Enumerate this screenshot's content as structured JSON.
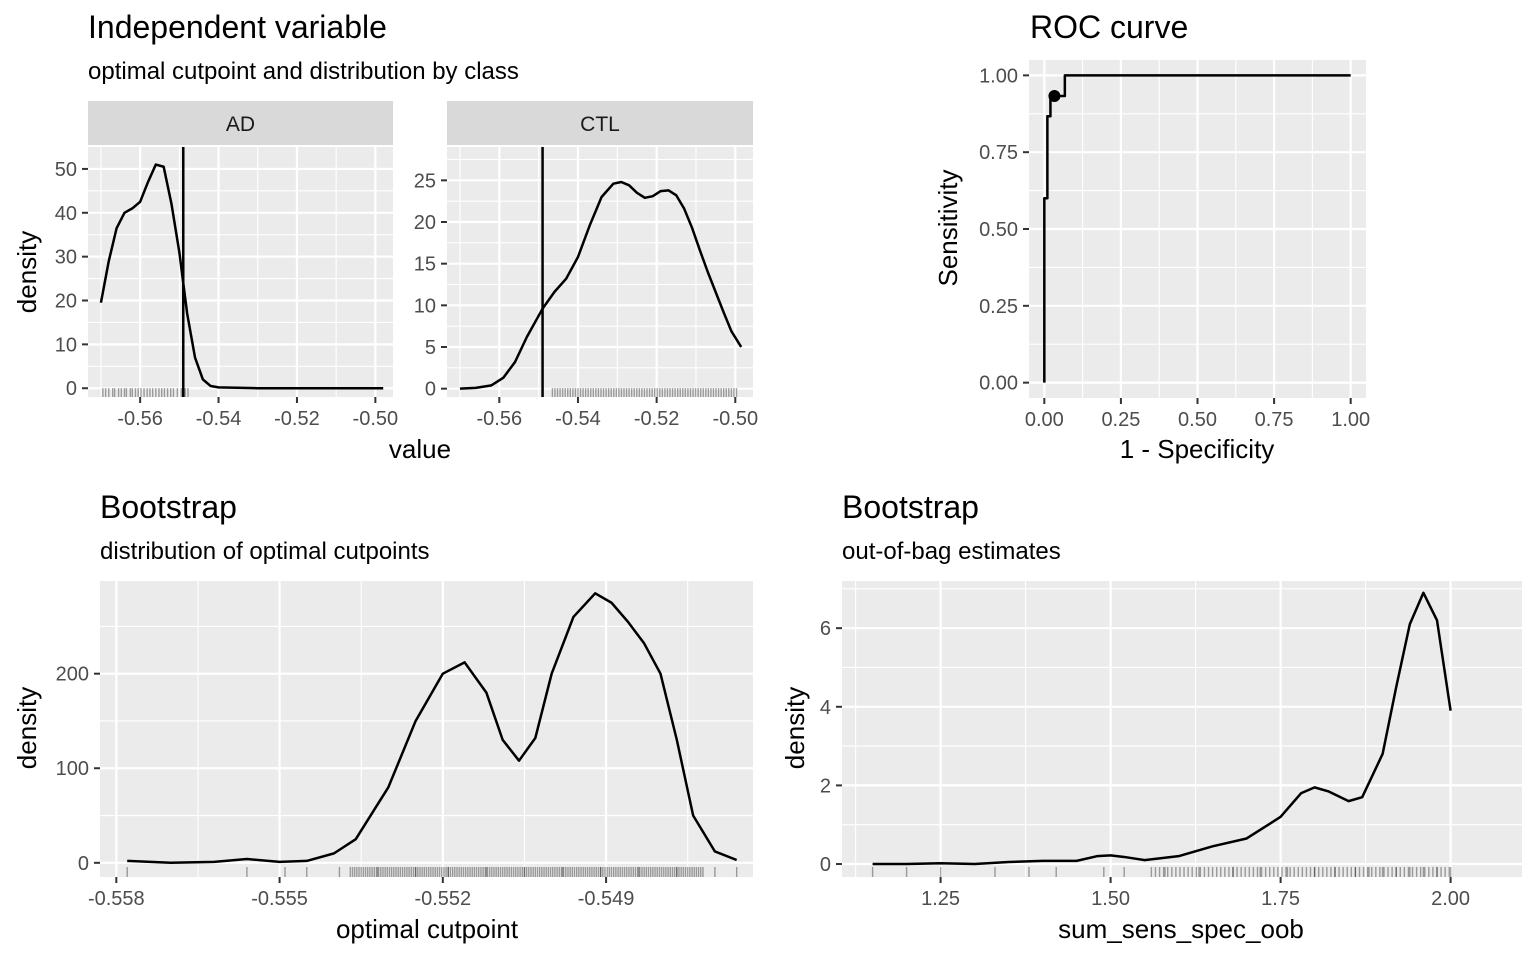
{
  "chart_data": [
    {
      "id": "independent_variable",
      "type": "line",
      "title": "Independent variable",
      "subtitle": "optimal cutpoint and distribution by class",
      "xlabel": "value",
      "ylabel": "density",
      "x_ticks": [
        "-0.56",
        "-0.54",
        "-0.52",
        "-0.50"
      ],
      "optimal_cutpoint": -0.549,
      "facets": [
        {
          "label": "AD",
          "ylim": [
            -2,
            55
          ],
          "y_ticks": [
            "0",
            "10",
            "20",
            "30",
            "40",
            "50"
          ],
          "x": [
            -0.57,
            -0.568,
            -0.566,
            -0.564,
            -0.562,
            -0.56,
            -0.558,
            -0.556,
            -0.554,
            -0.552,
            -0.55,
            -0.549,
            -0.548,
            -0.546,
            -0.544,
            -0.542,
            -0.54,
            -0.53,
            -0.52,
            -0.51,
            -0.498
          ],
          "y": [
            19.5,
            29,
            36.5,
            40,
            41,
            42.5,
            47,
            51,
            50.5,
            42,
            31,
            24,
            17,
            7,
            2,
            0.5,
            0.2,
            0,
            0,
            0,
            0
          ],
          "rug": [
            -0.5695,
            -0.5688,
            -0.568,
            -0.567,
            -0.5665,
            -0.5655,
            -0.5648,
            -0.564,
            -0.5635,
            -0.5625,
            -0.562,
            -0.5612,
            -0.5605,
            -0.5598,
            -0.559,
            -0.5582,
            -0.5575,
            -0.5568,
            -0.556,
            -0.5552,
            -0.5545,
            -0.5538,
            -0.553,
            -0.5522,
            -0.5515,
            -0.5505,
            -0.5495,
            -0.5485,
            -0.5478
          ]
        },
        {
          "label": "CTL",
          "ylim": [
            -1,
            29
          ],
          "y_ticks": [
            "0",
            "5",
            "10",
            "15",
            "20",
            "25"
          ],
          "x": [
            -0.57,
            -0.566,
            -0.562,
            -0.559,
            -0.556,
            -0.553,
            -0.549,
            -0.546,
            -0.543,
            -0.54,
            -0.537,
            -0.534,
            -0.531,
            -0.529,
            -0.527,
            -0.525,
            -0.523,
            -0.521,
            -0.519,
            -0.517,
            -0.515,
            -0.513,
            -0.511,
            -0.509,
            -0.507,
            -0.505,
            -0.503,
            -0.501,
            -0.4985
          ],
          "y": [
            0,
            0.1,
            0.4,
            1.3,
            3.2,
            6.2,
            9.6,
            11.6,
            13.2,
            15.8,
            19.6,
            23,
            24.6,
            24.8,
            24.4,
            23.5,
            22.9,
            23.1,
            23.7,
            23.8,
            23.2,
            21.6,
            19.3,
            16.6,
            14.0,
            11.6,
            9.2,
            6.9,
            5.0
          ]
        }
      ]
    },
    {
      "id": "roc_curve",
      "type": "line",
      "title": "ROC curve",
      "xlabel": "1 - Specificity",
      "ylabel": "Sensitivity",
      "x_ticks": [
        "0.00",
        "0.25",
        "0.50",
        "0.75",
        "1.00"
      ],
      "y_ticks": [
        "0.00",
        "0.25",
        "0.50",
        "0.75",
        "1.00"
      ],
      "xlim": [
        -0.05,
        1.05
      ],
      "ylim": [
        -0.05,
        1.05
      ],
      "fpr": [
        0,
        0,
        0.01,
        0.01,
        0.02,
        0.02,
        0.033,
        0.033,
        0.067,
        0.067,
        1.0
      ],
      "tpr": [
        0,
        0.6,
        0.6,
        0.867,
        0.867,
        0.933,
        0.933,
        0.933,
        0.933,
        1.0,
        1.0
      ],
      "optimal_point": {
        "fpr": 0.033,
        "tpr": 0.933
      }
    },
    {
      "id": "bootstrap_cutpoints",
      "type": "line",
      "title": "Bootstrap",
      "subtitle": "distribution of optimal cutpoints",
      "xlabel": "optimal cutpoint",
      "ylabel": "density",
      "x_ticks": [
        "-0.558",
        "-0.555",
        "-0.552",
        "-0.549"
      ],
      "y_ticks": [
        "0",
        "100",
        "200"
      ],
      "xlim": [
        -0.5583,
        -0.5463
      ],
      "ylim": [
        -15,
        298
      ],
      "x": [
        -0.5578,
        -0.557,
        -0.5562,
        -0.5556,
        -0.555,
        -0.5545,
        -0.554,
        -0.5536,
        -0.553,
        -0.5525,
        -0.552,
        -0.5516,
        -0.5512,
        -0.5509,
        -0.5506,
        -0.5503,
        -0.55,
        -0.5496,
        -0.5492,
        -0.5489,
        -0.5486,
        -0.5483,
        -0.548,
        -0.5477,
        -0.5474,
        -0.547,
        -0.5466
      ],
      "y": [
        2,
        0,
        1,
        4,
        1,
        2,
        10,
        25,
        80,
        150,
        200,
        212,
        180,
        130,
        108,
        132,
        200,
        260,
        285,
        275,
        255,
        232,
        200,
        130,
        50,
        12,
        3
      ],
      "rug": [
        -0.5578,
        -0.5556,
        -0.5549,
        -0.5545,
        -0.5539,
        -0.5532,
        -0.5525,
        -0.5519,
        -0.5512,
        -0.5505,
        -0.5498,
        -0.5491,
        -0.5484,
        -0.5477,
        -0.547,
        -0.5466
      ]
    },
    {
      "id": "bootstrap_oob",
      "type": "line",
      "title": "Bootstrap",
      "subtitle": "out-of-bag estimates",
      "xlabel": "sum_sens_spec_oob",
      "ylabel": "density",
      "x_ticks": [
        "1.25",
        "1.50",
        "1.75",
        "2.00"
      ],
      "y_ticks": [
        "0",
        "2",
        "4",
        "6"
      ],
      "xlim": [
        1.105,
        2.105
      ],
      "ylim": [
        -0.33,
        7.2
      ],
      "x": [
        1.15,
        1.2,
        1.25,
        1.3,
        1.35,
        1.4,
        1.45,
        1.48,
        1.5,
        1.52,
        1.55,
        1.6,
        1.65,
        1.7,
        1.75,
        1.78,
        1.8,
        1.82,
        1.85,
        1.87,
        1.9,
        1.92,
        1.94,
        1.96,
        1.98,
        2.0
      ],
      "y": [
        0,
        0,
        0.02,
        0,
        0.05,
        0.08,
        0.08,
        0.2,
        0.22,
        0.18,
        0.1,
        0.2,
        0.45,
        0.65,
        1.2,
        1.8,
        1.95,
        1.85,
        1.6,
        1.7,
        2.8,
        4.5,
        6.1,
        6.9,
        6.2,
        3.9
      ],
      "rug": [
        1.15,
        1.2,
        1.25,
        1.33,
        1.38,
        1.42,
        1.49,
        1.52,
        1.58,
        1.63,
        1.68,
        1.72,
        1.76,
        1.8,
        1.83,
        1.86,
        1.88,
        1.9,
        1.92,
        1.94,
        1.96,
        1.98,
        2.0
      ]
    }
  ]
}
